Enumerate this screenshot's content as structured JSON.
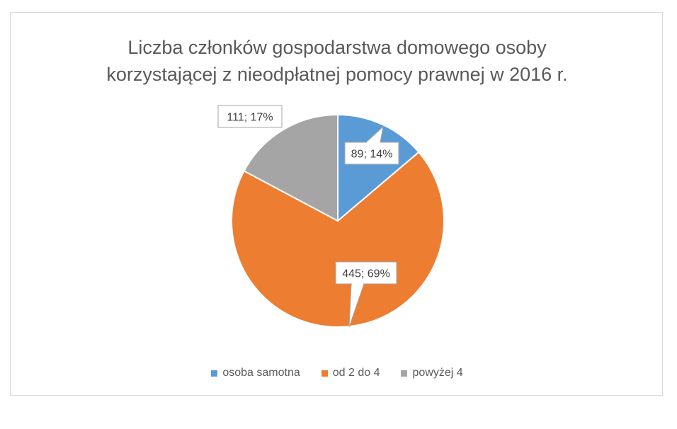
{
  "chart_data": {
    "type": "pie",
    "title_lines": [
      "Liczba członków gospodarstwa domowego osoby",
      "korzystającej z nieodpłatnej pomocy prawnej w 2016 r."
    ],
    "categories": [
      "osoba samotna",
      "od 2 do 4",
      "powyżej 4"
    ],
    "values": [
      89,
      445,
      111
    ],
    "percent_labels": [
      "14%",
      "69%",
      "17%"
    ],
    "data_labels": [
      "89; 14%",
      "445; 69%",
      "111; 17%"
    ],
    "colors": [
      "#5b9bd5",
      "#ed7d31",
      "#a5a5a5"
    ],
    "start_angle_deg": 0,
    "direction": "clockwise",
    "legend_position": "bottom"
  }
}
